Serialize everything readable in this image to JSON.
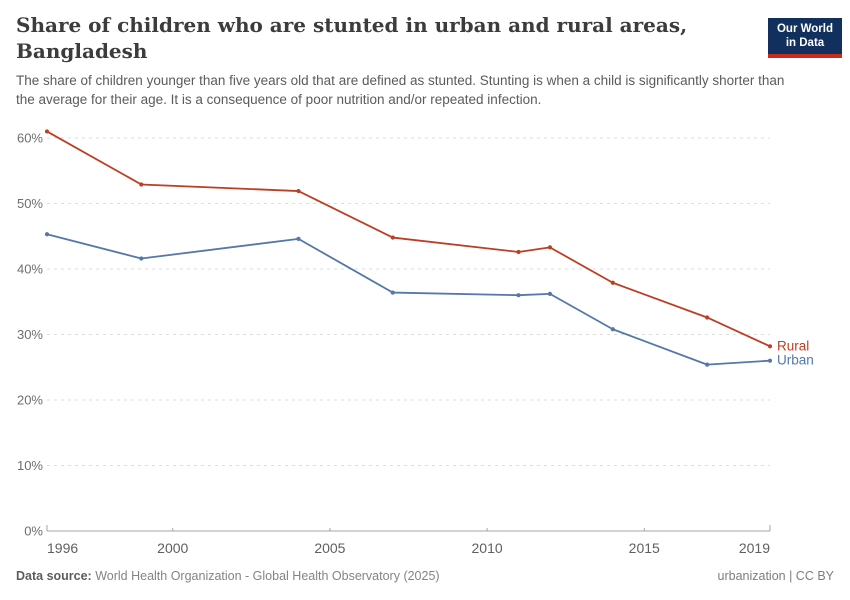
{
  "header": {
    "title": "Share of children who are stunted in urban and rural areas, Bangladesh",
    "subtitle": "The share of children younger than five years old that are defined as stunted. Stunting is when a child is significantly shorter than the average for their age. It is a consequence of poor nutrition and/or repeated infection.",
    "logo": {
      "line1": "Our World",
      "line2": "in Data",
      "bg_color": "#12305e",
      "bar_color": "#cb2a1d"
    }
  },
  "chart_data": {
    "type": "line",
    "title": "Share of children who are stunted in urban and rural areas, Bangladesh",
    "x": [
      1996,
      1999,
      2004,
      2007,
      2011,
      2012,
      2014,
      2017,
      2019
    ],
    "series": [
      {
        "name": "Rural",
        "color": "#bc3e25",
        "values": [
          61.0,
          52.9,
          51.9,
          44.8,
          42.6,
          43.3,
          37.9,
          32.6,
          28.2
        ]
      },
      {
        "name": "Urban",
        "color": "#5378a9",
        "values": [
          45.3,
          41.6,
          44.6,
          36.4,
          36.0,
          36.2,
          30.8,
          25.4,
          26.0
        ]
      }
    ],
    "xlim": [
      1996,
      2019
    ],
    "ylim": [
      0,
      60
    ],
    "x_ticks": [
      1996,
      2000,
      2005,
      2010,
      2015,
      2019
    ],
    "y_ticks": [
      0,
      10,
      20,
      30,
      40,
      50,
      60
    ],
    "y_tick_suffix": "%",
    "grid": "horizontal-dashed",
    "legend_position": "end-of-line-labels",
    "xlabel": "",
    "ylabel": ""
  },
  "footer": {
    "datasource_label": "Data source:",
    "datasource_text": " World Health Organization - Global Health Observatory (2025)",
    "note_right": "urbanization | CC BY"
  }
}
